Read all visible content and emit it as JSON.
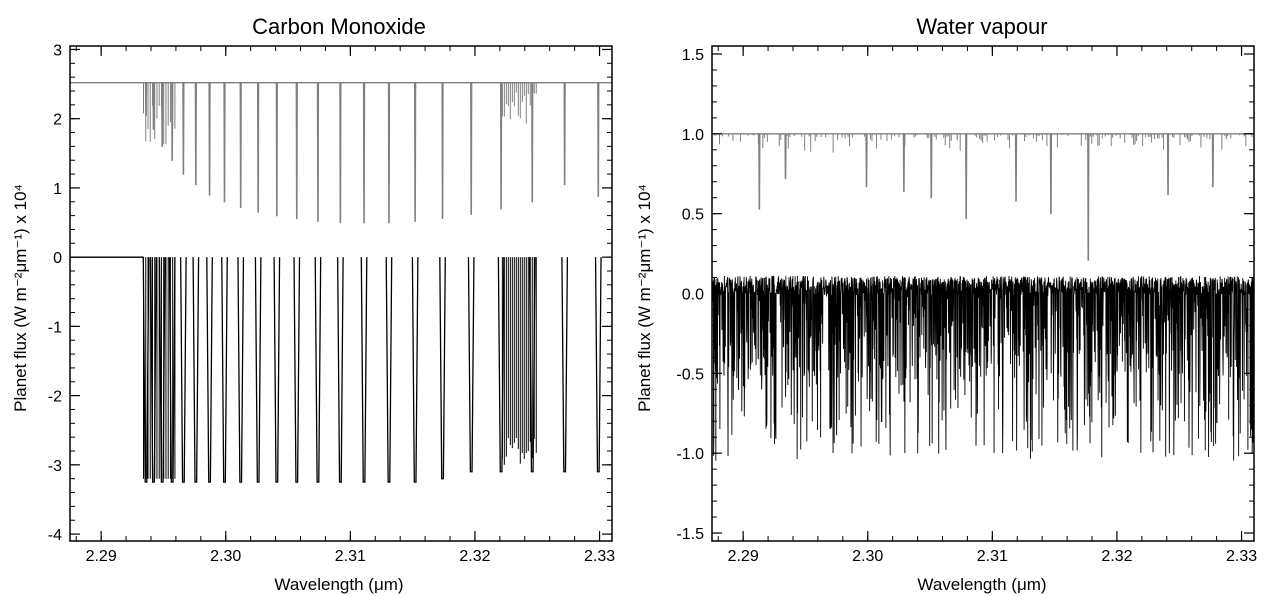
{
  "chart_data": [
    {
      "type": "line",
      "title": "Carbon Monoxide",
      "xlabel": "Wavelength (μm)",
      "ylabel": "Planet flux (W m⁻²μm⁻¹) x 10⁴",
      "xlim": [
        2.2875,
        2.331
      ],
      "ylim": [
        -4.1,
        3.05
      ],
      "x_ticks": [
        2.29,
        2.3,
        2.31,
        2.32,
        2.33
      ],
      "x_tick_labels": [
        "2.29",
        "2.30",
        "2.31",
        "2.32",
        "2.33"
      ],
      "y_ticks": [
        -4,
        -3,
        -2,
        -1,
        0,
        1,
        2,
        3
      ],
      "y_tick_labels": [
        "-4",
        "-3",
        "-2",
        "-1",
        "0",
        "1",
        "2",
        "3"
      ],
      "grid": false,
      "legend": "none",
      "series": [
        {
          "color": "#808080",
          "description_values": "continuum 2.52 with absorption lines from 2.2935 um",
          "continuum": 2.52,
          "line_centers": [
            2.2936,
            2.2942,
            2.2949,
            2.2957,
            2.2966,
            2.2976,
            2.2987,
            2.2999,
            2.3012,
            2.3026,
            2.3041,
            2.3057,
            2.3074,
            2.3092,
            2.3111,
            2.3131,
            2.3152,
            2.3174,
            2.3197,
            2.3221,
            2.3246,
            2.3272,
            2.3299
          ],
          "line_minima": [
            2.05,
            1.85,
            1.6,
            1.4,
            1.2,
            1.05,
            0.9,
            0.8,
            0.72,
            0.65,
            0.6,
            0.56,
            0.52,
            0.5,
            0.5,
            0.5,
            0.52,
            0.56,
            0.62,
            0.7,
            0.8,
            1.05,
            0.88
          ]
        },
        {
          "color": "#000000",
          "description_values": "continuum 0 with deep absorption lines to about -3.25 from 2.2935 um",
          "continuum": 0.0,
          "line_centers": [
            2.2936,
            2.2942,
            2.2949,
            2.2957,
            2.2966,
            2.2976,
            2.2987,
            2.2999,
            2.3012,
            2.3026,
            2.3041,
            2.3057,
            2.3074,
            2.3092,
            2.3111,
            2.3131,
            2.3152,
            2.3174,
            2.3197,
            2.3221,
            2.3246,
            2.3272,
            2.3299
          ],
          "line_minima": [
            -3.25,
            -3.25,
            -3.25,
            -3.25,
            -3.25,
            -3.25,
            -3.25,
            -3.25,
            -3.25,
            -3.25,
            -3.25,
            -3.25,
            -3.25,
            -3.25,
            -3.25,
            -3.25,
            -3.25,
            -3.2,
            -3.1,
            -3.1,
            -3.1,
            -3.1,
            -3.1
          ]
        }
      ]
    },
    {
      "type": "line",
      "title": "Water vapour",
      "xlabel": "Wavelength (μm)",
      "ylabel": "Planet flux (W m⁻²μm⁻¹) x 10⁴",
      "xlim": [
        2.2875,
        2.331
      ],
      "ylim": [
        -1.55,
        1.55
      ],
      "x_ticks": [
        2.29,
        2.3,
        2.31,
        2.32,
        2.33
      ],
      "x_tick_labels": [
        "2.29",
        "2.30",
        "2.31",
        "2.32",
        "2.33"
      ],
      "y_ticks": [
        -1.5,
        -1.0,
        -0.5,
        0.0,
        0.5,
        1.0,
        1.5
      ],
      "y_tick_labels": [
        "-1.5",
        "-1.0",
        "-0.5",
        "0.0",
        "0.5",
        "1.0",
        "1.5"
      ],
      "grid": false,
      "legend": "none",
      "series": [
        {
          "color": "#808080",
          "continuum": 1.0,
          "line_centers": [
            2.2913,
            2.2934,
            2.2999,
            2.3029,
            2.3051,
            2.3079,
            2.3119,
            2.3147,
            2.3177,
            2.3241,
            2.3277
          ],
          "line_minima": [
            0.53,
            0.72,
            0.67,
            0.64,
            0.6,
            0.47,
            0.58,
            0.5,
            0.21,
            0.62,
            0.67
          ]
        },
        {
          "color": "#000000",
          "continuum": 0.05,
          "noise_band": [
            -1.12,
            0.12
          ]
        }
      ]
    }
  ]
}
